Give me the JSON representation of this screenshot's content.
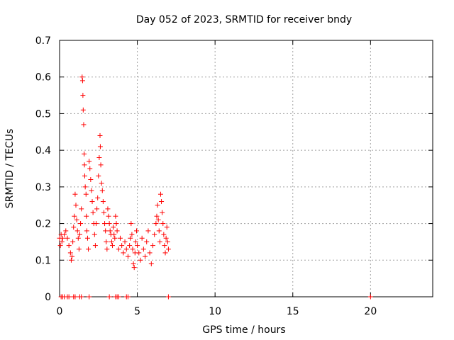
{
  "chart_data": {
    "type": "scatter",
    "title": "Day 052 of 2023, SRMTID for receiver bndy",
    "xlabel": "GPS time / hours",
    "ylabel": "SRMTID / TECUs",
    "xlim": [
      0,
      24
    ],
    "ylim": [
      0,
      0.7
    ],
    "x_ticks": [
      0,
      5,
      10,
      15,
      20
    ],
    "x_tick_labels": [
      "0",
      "5",
      "10",
      "15",
      "20"
    ],
    "y_ticks": [
      0,
      0.1,
      0.2,
      0.3,
      0.4,
      0.5,
      0.6,
      0.7
    ],
    "y_tick_labels": [
      "0",
      "0.1",
      "0.2",
      "0.3",
      "0.4",
      "0.5",
      "0.6",
      "0.7"
    ],
    "grid": true,
    "marker": "+",
    "series": [
      {
        "name": "SRMTID",
        "color": "#ff0000",
        "points": [
          [
            0.0,
            0.16
          ],
          [
            0.05,
            0.14
          ],
          [
            0.1,
            0.17
          ],
          [
            0.15,
            0.15
          ],
          [
            0.2,
            0.16
          ],
          [
            0.3,
            0.17
          ],
          [
            0.4,
            0.18
          ],
          [
            0.5,
            0.16
          ],
          [
            0.6,
            0.14
          ],
          [
            0.7,
            0.12
          ],
          [
            0.75,
            0.1
          ],
          [
            0.8,
            0.11
          ],
          [
            0.85,
            0.15
          ],
          [
            0.9,
            0.19
          ],
          [
            0.95,
            0.22
          ],
          [
            1.0,
            0.28
          ],
          [
            1.05,
            0.25
          ],
          [
            1.1,
            0.21
          ],
          [
            1.15,
            0.18
          ],
          [
            1.2,
            0.16
          ],
          [
            1.25,
            0.13
          ],
          [
            1.3,
            0.17
          ],
          [
            1.35,
            0.2
          ],
          [
            1.4,
            0.24
          ],
          [
            1.45,
            0.6
          ],
          [
            1.48,
            0.59
          ],
          [
            1.5,
            0.55
          ],
          [
            1.52,
            0.51
          ],
          [
            1.55,
            0.47
          ],
          [
            1.58,
            0.39
          ],
          [
            1.6,
            0.36
          ],
          [
            1.62,
            0.33
          ],
          [
            1.65,
            0.3
          ],
          [
            1.7,
            0.28
          ],
          [
            1.72,
            0.22
          ],
          [
            1.75,
            0.18
          ],
          [
            1.8,
            0.16
          ],
          [
            1.85,
            0.13
          ],
          [
            1.9,
            0.37
          ],
          [
            1.95,
            0.35
          ],
          [
            2.0,
            0.32
          ],
          [
            2.05,
            0.29
          ],
          [
            2.1,
            0.26
          ],
          [
            2.15,
            0.23
          ],
          [
            2.2,
            0.2
          ],
          [
            2.25,
            0.17
          ],
          [
            2.3,
            0.14
          ],
          [
            2.35,
            0.2
          ],
          [
            2.4,
            0.24
          ],
          [
            2.45,
            0.27
          ],
          [
            2.5,
            0.33
          ],
          [
            2.55,
            0.38
          ],
          [
            2.6,
            0.44
          ],
          [
            2.62,
            0.41
          ],
          [
            2.65,
            0.36
          ],
          [
            2.7,
            0.31
          ],
          [
            2.75,
            0.29
          ],
          [
            2.8,
            0.26
          ],
          [
            2.85,
            0.23
          ],
          [
            2.9,
            0.2
          ],
          [
            2.95,
            0.18
          ],
          [
            3.0,
            0.15
          ],
          [
            3.05,
            0.13
          ],
          [
            3.1,
            0.24
          ],
          [
            3.15,
            0.22
          ],
          [
            3.2,
            0.2
          ],
          [
            3.25,
            0.18
          ],
          [
            3.3,
            0.17
          ],
          [
            3.35,
            0.15
          ],
          [
            3.4,
            0.14
          ],
          [
            3.45,
            0.19
          ],
          [
            3.5,
            0.17
          ],
          [
            3.55,
            0.16
          ],
          [
            3.6,
            0.22
          ],
          [
            3.65,
            0.2
          ],
          [
            3.7,
            0.18
          ],
          [
            3.8,
            0.13
          ],
          [
            3.9,
            0.16
          ],
          [
            4.0,
            0.14
          ],
          [
            4.1,
            0.12
          ],
          [
            4.2,
            0.15
          ],
          [
            4.3,
            0.13
          ],
          [
            4.4,
            0.11
          ],
          [
            4.5,
            0.14
          ],
          [
            4.55,
            0.16
          ],
          [
            4.6,
            0.2
          ],
          [
            4.65,
            0.17
          ],
          [
            4.7,
            0.13
          ],
          [
            4.75,
            0.09
          ],
          [
            4.8,
            0.08
          ],
          [
            4.85,
            0.12
          ],
          [
            4.9,
            0.15
          ],
          [
            4.95,
            0.18
          ],
          [
            5.0,
            0.14
          ],
          [
            5.1,
            0.12
          ],
          [
            5.2,
            0.1
          ],
          [
            5.3,
            0.16
          ],
          [
            5.4,
            0.13
          ],
          [
            5.5,
            0.11
          ],
          [
            5.6,
            0.15
          ],
          [
            5.7,
            0.18
          ],
          [
            5.8,
            0.12
          ],
          [
            5.9,
            0.09
          ],
          [
            6.0,
            0.14
          ],
          [
            6.1,
            0.17
          ],
          [
            6.2,
            0.2
          ],
          [
            6.25,
            0.22
          ],
          [
            6.3,
            0.25
          ],
          [
            6.35,
            0.21
          ],
          [
            6.4,
            0.18
          ],
          [
            6.45,
            0.15
          ],
          [
            6.5,
            0.28
          ],
          [
            6.55,
            0.26
          ],
          [
            6.6,
            0.23
          ],
          [
            6.65,
            0.2
          ],
          [
            6.7,
            0.17
          ],
          [
            6.75,
            0.14
          ],
          [
            6.8,
            0.12
          ],
          [
            6.85,
            0.16
          ],
          [
            6.9,
            0.19
          ],
          [
            6.95,
            0.15
          ],
          [
            7.0,
            0.13
          ],
          [
            0.1,
            0.0
          ],
          [
            0.2,
            0.0
          ],
          [
            0.3,
            0.0
          ],
          [
            0.5,
            0.0
          ],
          [
            0.6,
            0.0
          ],
          [
            0.9,
            0.0
          ],
          [
            1.0,
            0.0
          ],
          [
            1.3,
            0.0
          ],
          [
            1.4,
            0.0
          ],
          [
            1.9,
            0.0
          ],
          [
            3.2,
            0.0
          ],
          [
            3.6,
            0.0
          ],
          [
            3.7,
            0.0
          ],
          [
            3.8,
            0.0
          ],
          [
            4.3,
            0.0
          ],
          [
            4.4,
            0.0
          ],
          [
            7.0,
            0.0
          ],
          [
            20.0,
            0.0
          ]
        ]
      }
    ]
  }
}
